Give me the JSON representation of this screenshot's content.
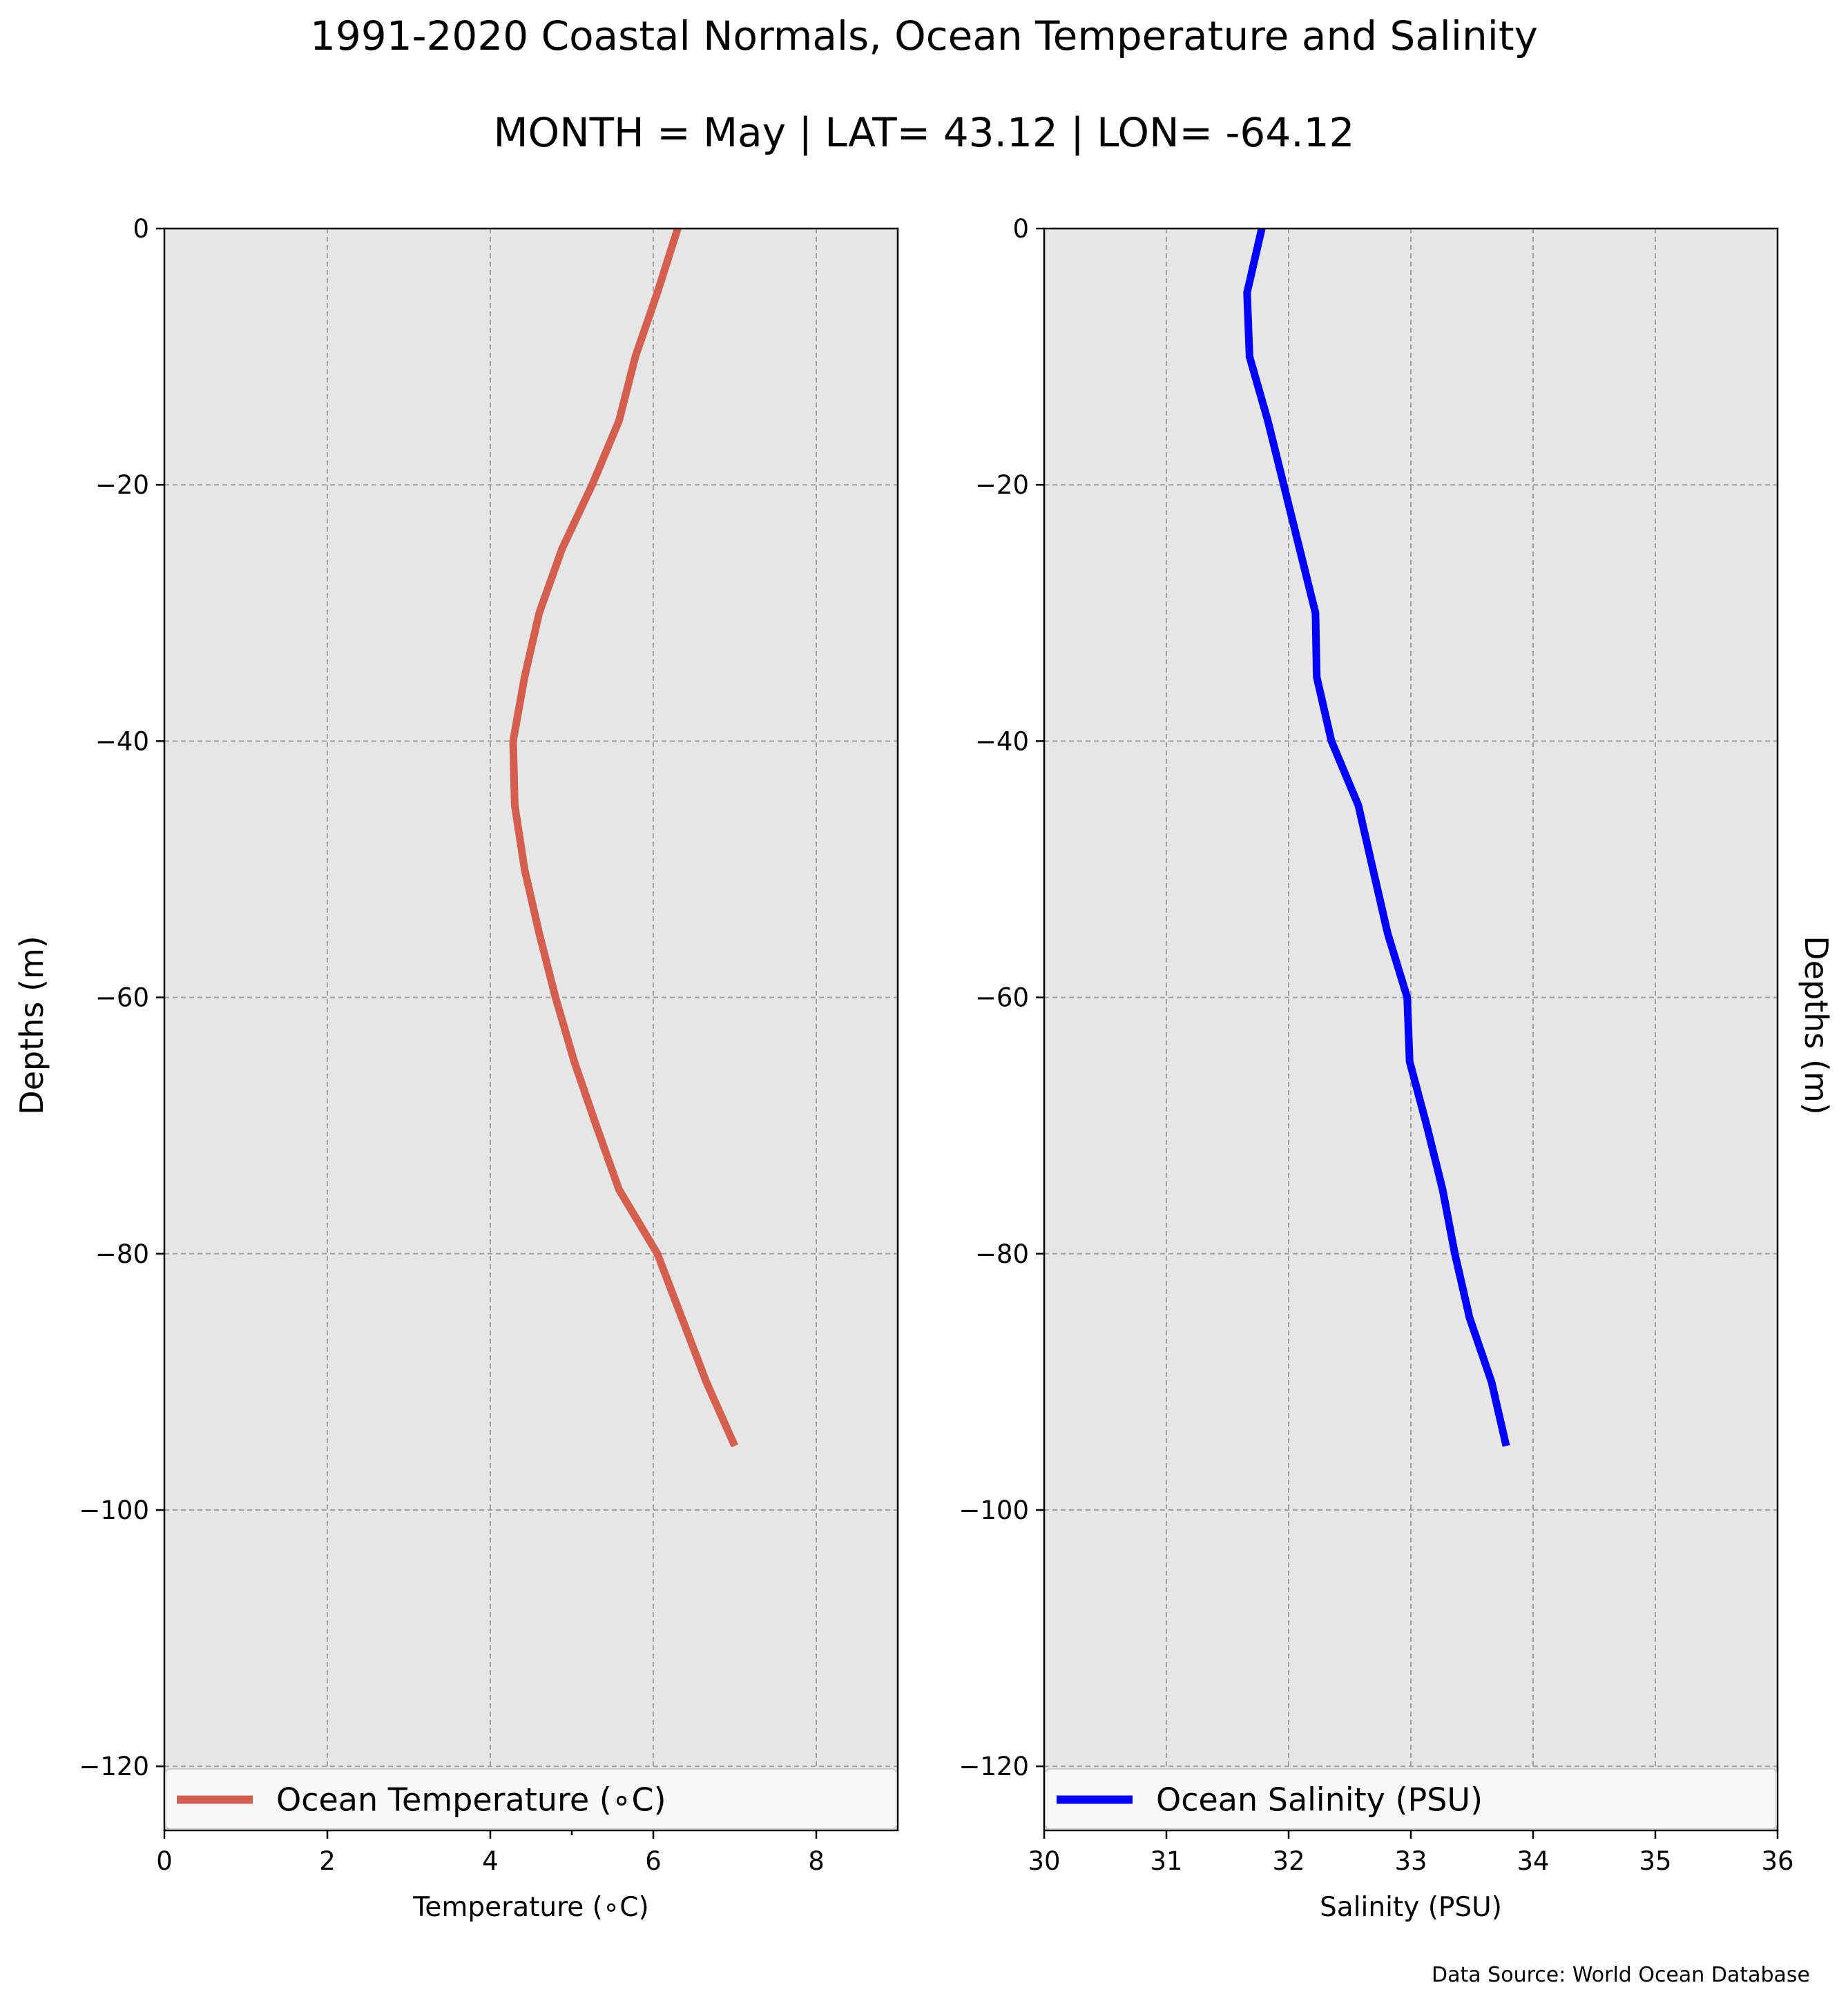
{
  "title": "1991-2020 Coastal Normals, Ocean Temperature and Salinity",
  "subtitle": "MONTH = May | LAT= 43.12 | LON= -64.12",
  "source_note": "Data Source: World Ocean Database",
  "chart_data": [
    {
      "type": "line",
      "xlabel": "Temperature (∘C)",
      "ylabel": "Depths (m)",
      "xlim": [
        0,
        9
      ],
      "ylim": [
        -125,
        0
      ],
      "xticks": [
        0,
        2,
        4,
        6,
        8
      ],
      "xtick_labels": [
        "0",
        "2",
        "4",
        "6",
        "8"
      ],
      "yticks": [
        0,
        -20,
        -40,
        -60,
        -80,
        -100,
        -120
      ],
      "ytick_labels": [
        "0",
        "−20",
        "−40",
        "−60",
        "−80",
        "−100",
        "−120"
      ],
      "grid": true,
      "background": "#e6e6e6",
      "legend_position": "bottom",
      "series": [
        {
          "name": "Ocean Temperature (∘C)",
          "color": "#d45f4e",
          "x": [
            6.3,
            6.05,
            5.78,
            5.58,
            5.25,
            4.88,
            4.6,
            4.42,
            4.28,
            4.3,
            4.42,
            4.6,
            4.8,
            5.03,
            5.3,
            5.58,
            6.05,
            6.35,
            6.65,
            7.0
          ],
          "y": [
            0,
            -5,
            -10,
            -15,
            -20,
            -25,
            -30,
            -35,
            -40,
            -45,
            -50,
            -55,
            -60,
            -65,
            -70,
            -75,
            -80,
            -85,
            -90,
            -95
          ]
        }
      ]
    },
    {
      "type": "line",
      "xlabel": "Salinity (PSU)",
      "ylabel": "Depths (m)",
      "xlim": [
        30,
        36
      ],
      "ylim": [
        -125,
        0
      ],
      "xticks": [
        30,
        31,
        32,
        33,
        34,
        35,
        36
      ],
      "xtick_labels": [
        "30",
        "31",
        "32",
        "33",
        "34",
        "35",
        "36"
      ],
      "yticks": [
        0,
        -20,
        -40,
        -60,
        -80,
        -100,
        -120
      ],
      "ytick_labels": [
        "0",
        "−20",
        "−40",
        "−60",
        "−80",
        "−100",
        "−120"
      ],
      "grid": true,
      "background": "#e6e6e6",
      "legend_position": "bottom",
      "series": [
        {
          "name": "Ocean Salinity (PSU)",
          "color": "#0000ff",
          "x": [
            31.78,
            31.66,
            31.68,
            31.83,
            31.96,
            32.09,
            32.22,
            32.23,
            32.35,
            32.57,
            32.69,
            32.81,
            32.97,
            32.99,
            33.13,
            33.26,
            33.36,
            33.48,
            33.66,
            33.78
          ],
          "y": [
            0,
            -5,
            -10,
            -15,
            -20,
            -25,
            -30,
            -35,
            -40,
            -45,
            -50,
            -55,
            -60,
            -65,
            -70,
            -75,
            -80,
            -85,
            -90,
            -95
          ]
        }
      ]
    }
  ]
}
